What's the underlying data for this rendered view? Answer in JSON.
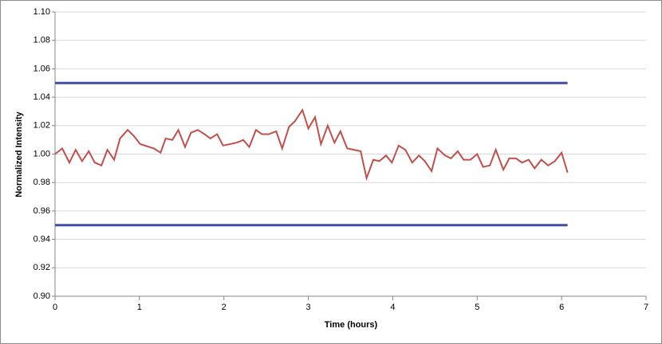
{
  "chart_data": {
    "type": "line",
    "x_label": "Time (hours)",
    "y_label": "Normalized Intensity",
    "xlim": [
      0,
      7
    ],
    "xticks": [
      0,
      1,
      2,
      3,
      4,
      5,
      6,
      7
    ],
    "ylim": [
      0.9,
      1.1
    ],
    "yticks": [
      {
        "value": 0.9,
        "label": "0.90"
      },
      {
        "value": 0.92,
        "label": "0.92"
      },
      {
        "value": 0.94,
        "label": "0.94"
      },
      {
        "value": 0.96,
        "label": "0.96"
      },
      {
        "value": 0.98,
        "label": "0.98"
      },
      {
        "value": 1.0,
        "label": "1.00"
      },
      {
        "value": 1.02,
        "label": "1.02"
      },
      {
        "value": 1.04,
        "label": "1.04"
      },
      {
        "value": 1.06,
        "label": "1.06"
      },
      {
        "value": 1.08,
        "label": "1.08"
      },
      {
        "value": 1.1,
        "label": "1.10"
      }
    ],
    "grid": true,
    "series": [
      {
        "color": "#c0504d",
        "x": [
          0,
          0.085,
          0.17,
          0.245,
          0.32,
          0.4,
          0.47,
          0.55,
          0.62,
          0.7,
          0.77,
          0.86,
          0.93,
          1.01,
          1.17,
          1.25,
          1.31,
          1.39,
          1.46,
          1.54,
          1.61,
          1.69,
          1.77,
          1.84,
          1.92,
          1.99,
          2.15,
          2.23,
          2.3,
          2.38,
          2.45,
          2.53,
          2.62,
          2.69,
          2.77,
          2.84,
          2.93,
          3.0,
          3.08,
          3.15,
          3.23,
          3.31,
          3.38,
          3.46,
          3.54,
          3.62,
          3.69,
          3.77,
          3.84,
          3.92,
          3.99,
          4.07,
          4.15,
          4.23,
          4.31,
          4.38,
          4.46,
          4.53,
          4.62,
          4.69,
          4.77,
          4.84,
          4.92,
          5.0,
          5.07,
          5.15,
          5.22,
          5.31,
          5.38,
          5.46,
          5.53,
          5.61,
          5.68,
          5.76,
          5.84,
          5.92,
          6.0,
          6.07
        ],
        "values": [
          1.0,
          1.004,
          0.994,
          1.003,
          0.995,
          1.002,
          0.994,
          0.992,
          1.003,
          0.996,
          1.011,
          1.017,
          1.013,
          1.007,
          1.004,
          1.001,
          1.011,
          1.01,
          1.017,
          1.005,
          1.015,
          1.017,
          1.014,
          1.011,
          1.014,
          1.006,
          1.008,
          1.01,
          1.005,
          1.017,
          1.014,
          1.014,
          1.016,
          1.004,
          1.019,
          1.023,
          1.031,
          1.018,
          1.026,
          1.007,
          1.02,
          1.008,
          1.016,
          1.004,
          1.003,
          1.002,
          0.983,
          0.996,
          0.995,
          0.999,
          0.994,
          1.006,
          1.003,
          0.994,
          0.999,
          0.995,
          0.988,
          1.004,
          0.999,
          0.997,
          1.002,
          0.996,
          0.996,
          1.0,
          0.991,
          0.992,
          1.003,
          0.989,
          0.997,
          0.997,
          0.994,
          0.996,
          0.99,
          0.996,
          0.992,
          0.995,
          1.001,
          0.987
        ]
      },
      {
        "color": "#3f4fa3",
        "x": [
          0,
          6.07
        ],
        "values": [
          1.05,
          1.05
        ]
      },
      {
        "color": "#3f4fa3",
        "x": [
          0,
          6.07
        ],
        "values": [
          0.95,
          0.95
        ]
      }
    ]
  }
}
